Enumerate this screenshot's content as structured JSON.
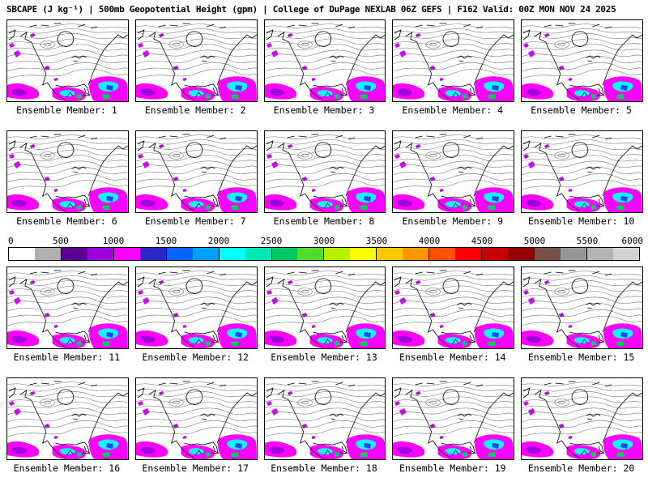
{
  "header": {
    "title": "SBCAPE (J kg⁻¹) | 500mb Geopotential Height (gpm) | College of DuPage NEXLAB 06Z GEFS | F162 Valid: 00Z MON NOV 24 2025"
  },
  "panels": [
    {
      "label": "Ensemble Member: 1"
    },
    {
      "label": "Ensemble Member: 2"
    },
    {
      "label": "Ensemble Member: 3"
    },
    {
      "label": "Ensemble Member: 4"
    },
    {
      "label": "Ensemble Member: 5"
    },
    {
      "label": "Ensemble Member: 6"
    },
    {
      "label": "Ensemble Member: 7"
    },
    {
      "label": "Ensemble Member: 8"
    },
    {
      "label": "Ensemble Member: 9"
    },
    {
      "label": "Ensemble Member: 10"
    },
    {
      "label": "Ensemble Member: 11"
    },
    {
      "label": "Ensemble Member: 12"
    },
    {
      "label": "Ensemble Member: 13"
    },
    {
      "label": "Ensemble Member: 14"
    },
    {
      "label": "Ensemble Member: 15"
    },
    {
      "label": "Ensemble Member: 16"
    },
    {
      "label": "Ensemble Member: 17"
    },
    {
      "label": "Ensemble Member: 18"
    },
    {
      "label": "Ensemble Member: 19"
    },
    {
      "label": "Ensemble Member: 20"
    }
  ],
  "colorbar": {
    "units": "J kg⁻¹",
    "range": [
      0,
      6000
    ],
    "tick_labels": [
      "0",
      "500",
      "1000",
      "1500",
      "2000",
      "2500",
      "3000",
      "3500",
      "4000",
      "4500",
      "5000",
      "5500",
      "6000"
    ],
    "colors": [
      "#ffffff",
      "#b0b0b0",
      "#5a0096",
      "#a000dc",
      "#ff00ff",
      "#2828c8",
      "#0064ff",
      "#00a0ff",
      "#00ffff",
      "#00e6b4",
      "#00c864",
      "#50dc28",
      "#b4f000",
      "#ffff00",
      "#ffc800",
      "#ff9600",
      "#ff5000",
      "#ff0000",
      "#c80000",
      "#960000",
      "#785046",
      "#969696",
      "#b4b4b4",
      "#d2d2d2"
    ]
  },
  "map_style": {
    "contour_color": "#6e6e6e",
    "coast_color": "#000000",
    "cape_low_color": "#ff00ff",
    "cape_mid_color": "#00ffff",
    "cape_high_color": "#00cc55"
  }
}
